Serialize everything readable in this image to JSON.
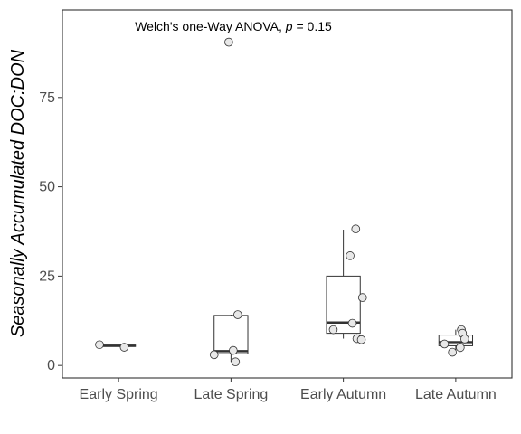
{
  "chart_data": {
    "type": "box",
    "annotation": {
      "prefix": "Welch's one-Way ANOVA, ",
      "p_symbol": "p",
      "suffix": " = 0.15"
    },
    "ylabel": "Seasonally Accumulated DOC:DON",
    "xlabel": "",
    "ylim": [
      -3.5,
      99.5
    ],
    "yticks": [
      0,
      25,
      50,
      75
    ],
    "grid": false,
    "categories": [
      "Early Spring",
      "Late Spring",
      "Early Autumn",
      "Late Autumn"
    ],
    "boxes": [
      {
        "category": "Early Spring",
        "q1": 5.3,
        "median": 5.5,
        "q3": 5.7,
        "whisker_low": 5.3,
        "whisker_high": 5.7
      },
      {
        "category": "Late Spring",
        "q1": 3.3,
        "median": 4.0,
        "q3": 14.0,
        "whisker_low": 1.0,
        "whisker_high": 14.2
      },
      {
        "category": "Early Autumn",
        "q1": 9.0,
        "median": 12.0,
        "q3": 25.0,
        "whisker_low": 7.5,
        "whisker_high": 38.0
      },
      {
        "category": "Late Autumn",
        "q1": 5.5,
        "median": 6.5,
        "q3": 8.5,
        "whisker_low": 3.5,
        "whisker_high": 10.0
      }
    ],
    "points": [
      {
        "category": "Early Spring",
        "jitter": -0.17,
        "y": 5.8
      },
      {
        "category": "Early Spring",
        "jitter": 0.05,
        "y": 5.1
      },
      {
        "category": "Late Spring",
        "jitter": -0.02,
        "y": 90.5
      },
      {
        "category": "Late Spring",
        "jitter": 0.06,
        "y": 14.2
      },
      {
        "category": "Late Spring",
        "jitter": 0.02,
        "y": 4.2
      },
      {
        "category": "Late Spring",
        "jitter": -0.15,
        "y": 3.0
      },
      {
        "category": "Late Spring",
        "jitter": 0.04,
        "y": 1.0
      },
      {
        "category": "Early Autumn",
        "jitter": 0.11,
        "y": 38.2
      },
      {
        "category": "Early Autumn",
        "jitter": 0.06,
        "y": 30.7
      },
      {
        "category": "Early Autumn",
        "jitter": 0.17,
        "y": 19.0
      },
      {
        "category": "Early Autumn",
        "jitter": 0.08,
        "y": 11.8
      },
      {
        "category": "Early Autumn",
        "jitter": -0.09,
        "y": 10.0
      },
      {
        "category": "Early Autumn",
        "jitter": 0.12,
        "y": 7.5
      },
      {
        "category": "Early Autumn",
        "jitter": 0.16,
        "y": 7.2
      },
      {
        "category": "Late Autumn",
        "jitter": 0.05,
        "y": 10.0
      },
      {
        "category": "Late Autumn",
        "jitter": 0.06,
        "y": 9.0
      },
      {
        "category": "Late Autumn",
        "jitter": 0.08,
        "y": 7.4
      },
      {
        "category": "Late Autumn",
        "jitter": -0.1,
        "y": 6.0
      },
      {
        "category": "Late Autumn",
        "jitter": 0.04,
        "y": 5.0
      },
      {
        "category": "Late Autumn",
        "jitter": -0.03,
        "y": 3.7
      }
    ],
    "colors": {
      "box_stroke": "#333333",
      "box_fill": "#ffffff",
      "point_fill": "#e8e8e8",
      "point_stroke": "#333333",
      "panel_border": "#333333"
    }
  }
}
